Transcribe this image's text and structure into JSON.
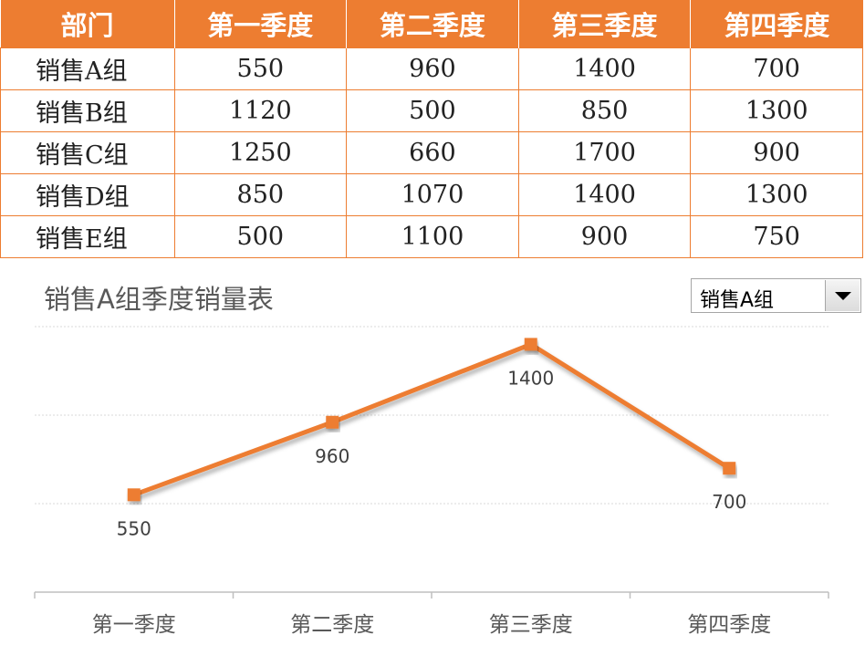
{
  "table": {
    "headers": [
      "部门",
      "第一季度",
      "第二季度",
      "第三季度",
      "第四季度"
    ],
    "rows": [
      [
        "销售A组",
        "550",
        "960",
        "1400",
        "700"
      ],
      [
        "销售B组",
        "1120",
        "500",
        "850",
        "1300"
      ],
      [
        "销售C组",
        "1250",
        "660",
        "1700",
        "900"
      ],
      [
        "销售D组",
        "850",
        "1070",
        "1400",
        "1300"
      ],
      [
        "销售E组",
        "500",
        "1100",
        "900",
        "750"
      ]
    ]
  },
  "selector": {
    "selected": "销售A组",
    "icon": "dropdown-arrow-icon"
  },
  "colors": {
    "accent": "#ed7d31",
    "grid": "#d9d9d9",
    "text": "#595959"
  },
  "chart_data": {
    "type": "line",
    "title": "销售A组季度销量表",
    "categories": [
      "第一季度",
      "第二季度",
      "第三季度",
      "第四季度"
    ],
    "values": [
      550,
      960,
      1400,
      700
    ],
    "data_labels": [
      "550",
      "960",
      "1400",
      "700"
    ],
    "ylim": [
      0,
      1500
    ],
    "grid": true,
    "legend": false,
    "marker": "square"
  }
}
